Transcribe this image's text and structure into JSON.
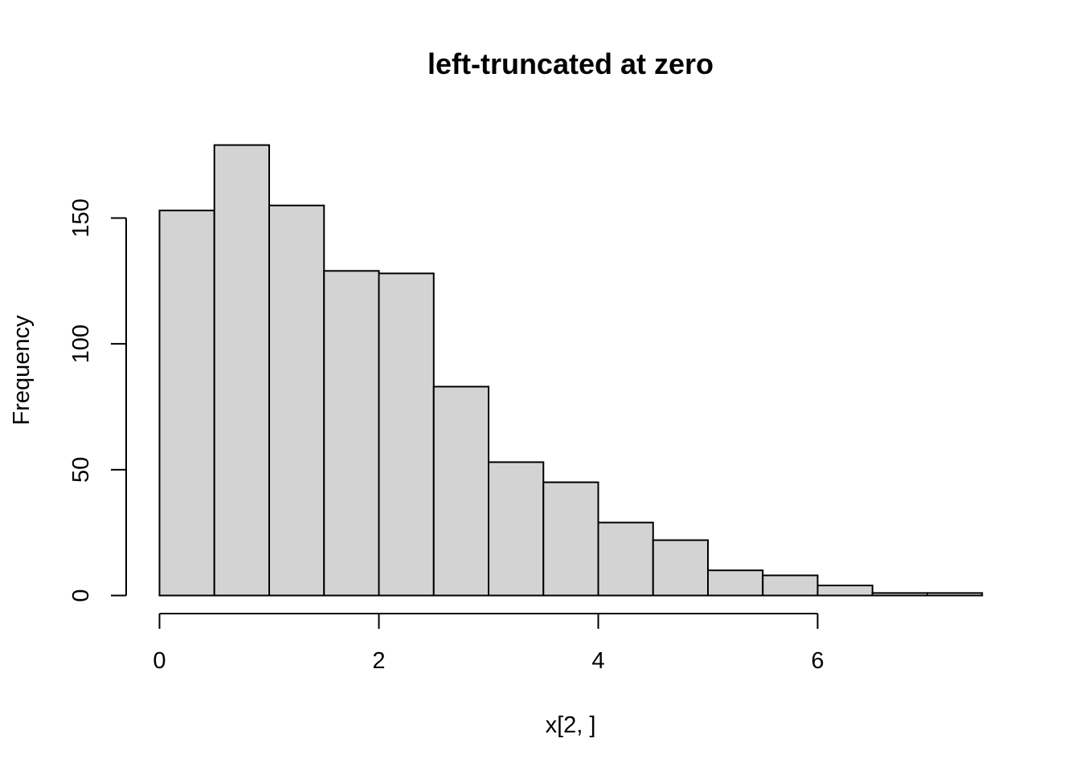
{
  "chart_data": {
    "type": "bar",
    "title": "left-truncated at zero",
    "xlabel": "x[2, ]",
    "ylabel": "Frequency",
    "bin_edges": [
      0,
      0.5,
      1,
      1.5,
      2,
      2.5,
      3,
      3.5,
      4,
      4.5,
      5,
      5.5,
      6,
      6.5,
      7,
      7.5
    ],
    "values": [
      153,
      179,
      155,
      129,
      128,
      83,
      53,
      45,
      29,
      22,
      10,
      8,
      4,
      1,
      1
    ],
    "xlim": [
      0,
      7.5
    ],
    "ylim": [
      0,
      180
    ],
    "x_ticks": [
      0,
      2,
      4,
      6
    ],
    "x_tick_labels": [
      "0",
      "2",
      "4",
      "6"
    ],
    "y_ticks": [
      0,
      50,
      100,
      150
    ],
    "y_tick_labels": [
      "0",
      "50",
      "100",
      "150"
    ],
    "bar_color": "#d3d3d3",
    "bar_border_color": "#000000",
    "grid": false,
    "legend": "none"
  }
}
